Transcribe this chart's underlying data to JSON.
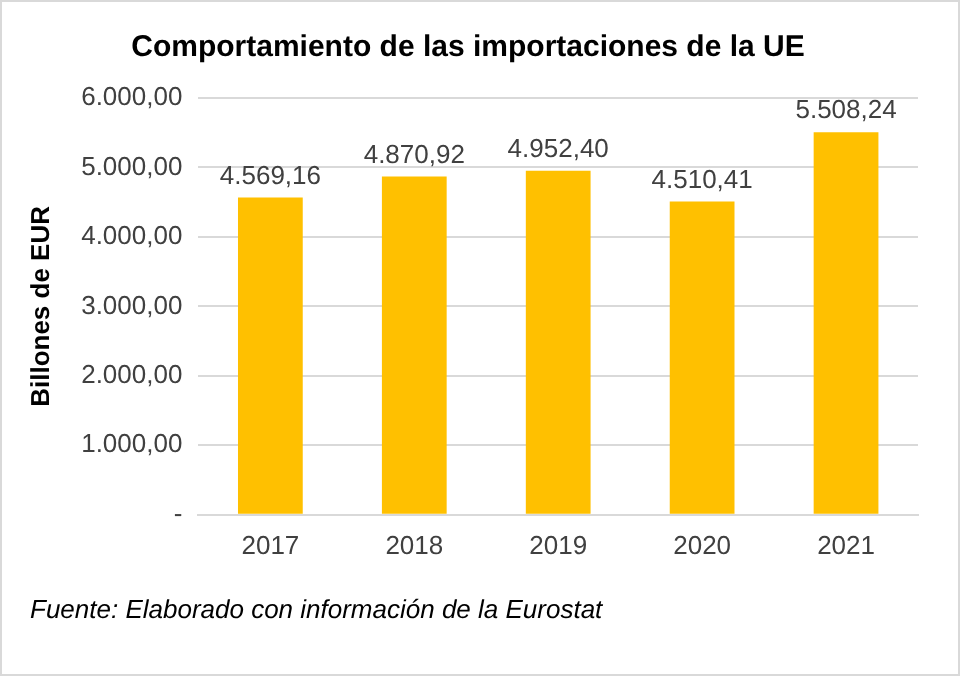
{
  "chart_data": {
    "type": "bar",
    "title": "Comportamiento de las importaciones de la UE",
    "ylabel": "Billones de EUR",
    "categories": [
      "2017",
      "2018",
      "2019",
      "2020",
      "2021"
    ],
    "values": [
      4569.16,
      4870.92,
      4952.4,
      4510.41,
      5508.24
    ],
    "value_labels": [
      "4.569,16",
      "4.870,92",
      "4.952,40",
      "4.510,41",
      "5.508,24"
    ],
    "color": "#ffc000",
    "ylim": [
      0,
      6000
    ],
    "yticks": [
      {
        "value": 0,
        "label": "-"
      },
      {
        "value": 1000,
        "label": "1.000,00"
      },
      {
        "value": 2000,
        "label": "2.000,00"
      },
      {
        "value": 3000,
        "label": "3.000,00"
      },
      {
        "value": 4000,
        "label": "4.000,00"
      },
      {
        "value": 5000,
        "label": "5.000,00"
      },
      {
        "value": 6000,
        "label": "6.000,00"
      }
    ],
    "grid": "y",
    "annotations": [
      "Fuente: Elaborado con información de la Eurostat"
    ]
  }
}
